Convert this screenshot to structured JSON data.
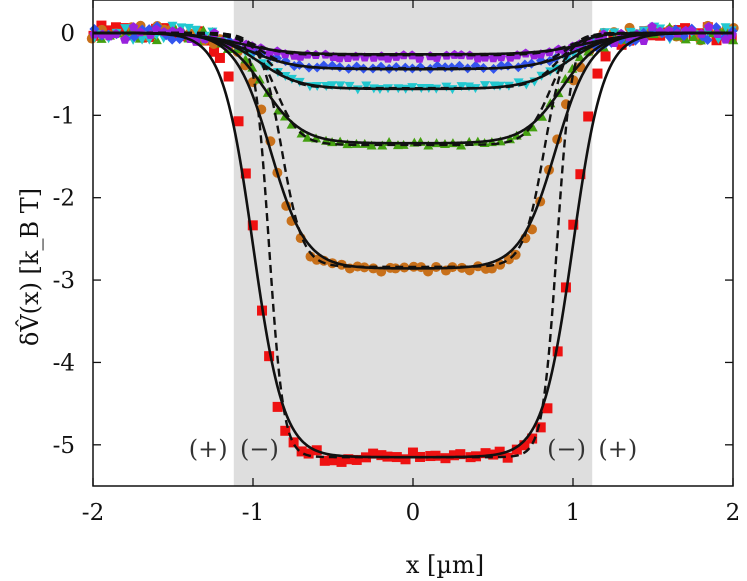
{
  "chart_data": {
    "type": "scatter",
    "xlabel": "x [µm]",
    "ylabel": "δV̂(x) [k_B T]",
    "xlim": [
      -2,
      2
    ],
    "ylim": [
      -5.5,
      0.4
    ],
    "xticks": [
      "-2",
      "-1",
      "0",
      "1",
      "2"
    ],
    "yticks": [
      "0",
      "-1",
      "-2",
      "-3",
      "-4",
      "-5"
    ],
    "shaded_region": {
      "x_from": -1.12,
      "x_to": 1.12,
      "color": "#dedede"
    },
    "annotations": [
      {
        "text": "(+)",
        "x": -1.28,
        "y": -5.05
      },
      {
        "text": "(−)",
        "x": -0.96,
        "y": -5.05
      },
      {
        "text": "(−)",
        "x": 0.96,
        "y": -5.05
      },
      {
        "text": "(+)",
        "x": 1.28,
        "y": -5.05
      }
    ],
    "series": [
      {
        "marker": "square",
        "color": "#ee1111",
        "depth": -5.15,
        "edge": 0.99,
        "width": 0.075
      },
      {
        "marker": "circle",
        "color": "#c8701a",
        "depth": -2.87,
        "edge": 0.88,
        "width": 0.09
      },
      {
        "marker": "triangle-up",
        "color": "#44a010",
        "depth": -1.34,
        "edge": 0.92,
        "width": 0.1
      },
      {
        "marker": "triangle-down",
        "color": "#22c8d0",
        "depth": -0.67,
        "edge": 0.96,
        "width": 0.11
      },
      {
        "marker": "diamond",
        "color": "#3355ee",
        "depth": -0.42,
        "edge": 1.0,
        "width": 0.12
      },
      {
        "marker": "pentagon",
        "color": "#9922dd",
        "depth": -0.29,
        "edge": 1.05,
        "width": 0.13
      }
    ],
    "solid_fits": [
      {
        "depth": -5.15,
        "edge": 1.0,
        "width": 0.095
      },
      {
        "depth": -2.86,
        "edge": 0.89,
        "width": 0.11
      },
      {
        "depth": -1.34,
        "edge": 0.93,
        "width": 0.12
      },
      {
        "depth": -0.68,
        "edge": 0.97,
        "width": 0.13
      },
      {
        "depth": -0.44,
        "edge": 1.02,
        "width": 0.14
      },
      {
        "depth": -0.26,
        "edge": 1.08,
        "width": 0.15
      }
    ],
    "dashed_fits": [
      {
        "depth": -5.15,
        "edge": 0.9,
        "width": 0.045
      },
      {
        "depth": -2.84,
        "edge": 0.82,
        "width": 0.065
      },
      {
        "depth": -1.36,
        "edge": 0.86,
        "width": 0.075
      },
      {
        "depth": -0.67,
        "edge": 0.91,
        "width": 0.085
      },
      {
        "depth": -0.43,
        "edge": 0.95,
        "width": 0.09
      },
      {
        "depth": -0.27,
        "edge": 1.0,
        "width": 0.1
      }
    ]
  }
}
